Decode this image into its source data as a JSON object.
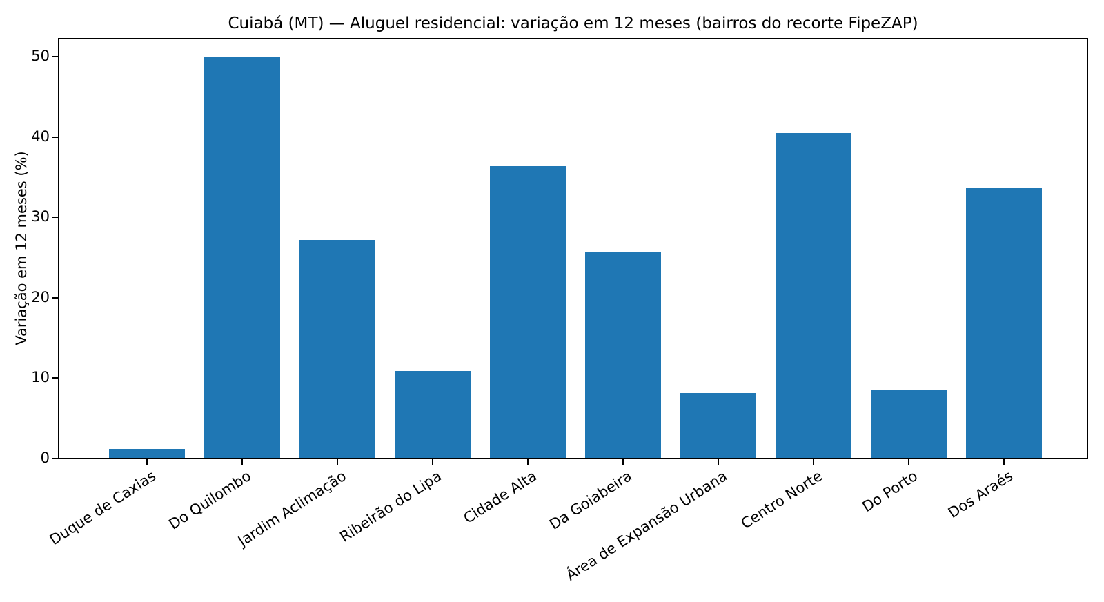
{
  "chart_data": {
    "type": "bar",
    "title": "Cuiabá (MT) — Aluguel residencial: variação em 12 meses (bairros do recorte FipeZAP)",
    "xlabel": "",
    "ylabel": "Variação em 12 meses (%)",
    "categories": [
      "Duque de Caxias",
      "Do Quilombo",
      "Jardim Aclimação",
      "Ribeirão do Lipa",
      "Cidade Alta",
      "Da Goiabeira",
      "Área de Expansão Urbana",
      "Centro Norte",
      "Do Porto",
      "Dos Araés"
    ],
    "values": [
      1.1,
      49.8,
      27.1,
      10.8,
      36.3,
      25.6,
      8.1,
      40.4,
      8.4,
      33.6
    ],
    "yticks": [
      0,
      10,
      20,
      30,
      40,
      50
    ],
    "ylim": [
      0,
      52.4
    ],
    "bar_color": "#1f77b4",
    "grid": false,
    "legend_position": "none",
    "x_tick_rotation_deg": 33
  }
}
